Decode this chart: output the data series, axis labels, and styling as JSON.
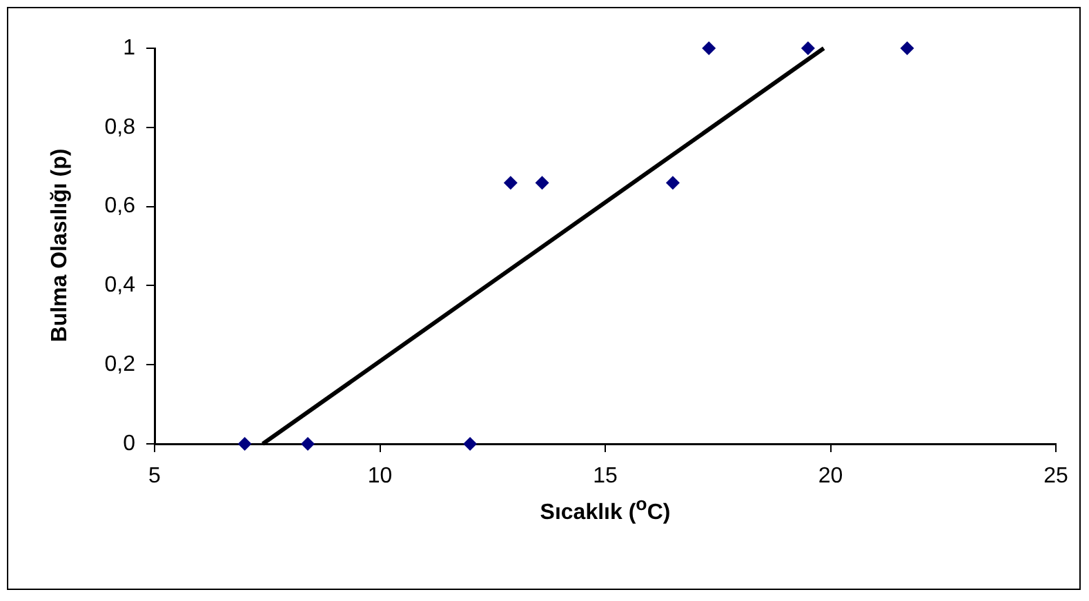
{
  "chart_data": {
    "type": "scatter",
    "xlabel": "Sıcaklık ($^{o}$C)",
    "ylabel": "Bulma Olasılığı (p)",
    "xlim": [
      5,
      25
    ],
    "xticks": [
      5,
      10,
      15,
      20,
      25
    ],
    "ylim": [
      0,
      1
    ],
    "yticks": [
      0,
      {
        "value": 0.2,
        "label": "0,2"
      },
      {
        "value": 0.4,
        "label": "0,4"
      },
      {
        "value": 0.6,
        "label": "0,6"
      },
      {
        "value": 0.8,
        "label": "0,8"
      },
      1
    ],
    "grid": false,
    "legend": false,
    "series": [
      {
        "type": "scatter",
        "color": "#000080",
        "marker": "diamond",
        "x": [
          7.0,
          8.4,
          12.0,
          12.9,
          13.6,
          16.5,
          17.3,
          19.5,
          21.7
        ],
        "values": [
          0,
          0,
          0,
          0.66,
          0.66,
          0.66,
          1,
          1,
          1
        ]
      },
      {
        "type": "line",
        "color": "#000000",
        "marker": "none",
        "x": [
          7.4,
          19.85
        ],
        "values": [
          0,
          1
        ]
      }
    ]
  }
}
